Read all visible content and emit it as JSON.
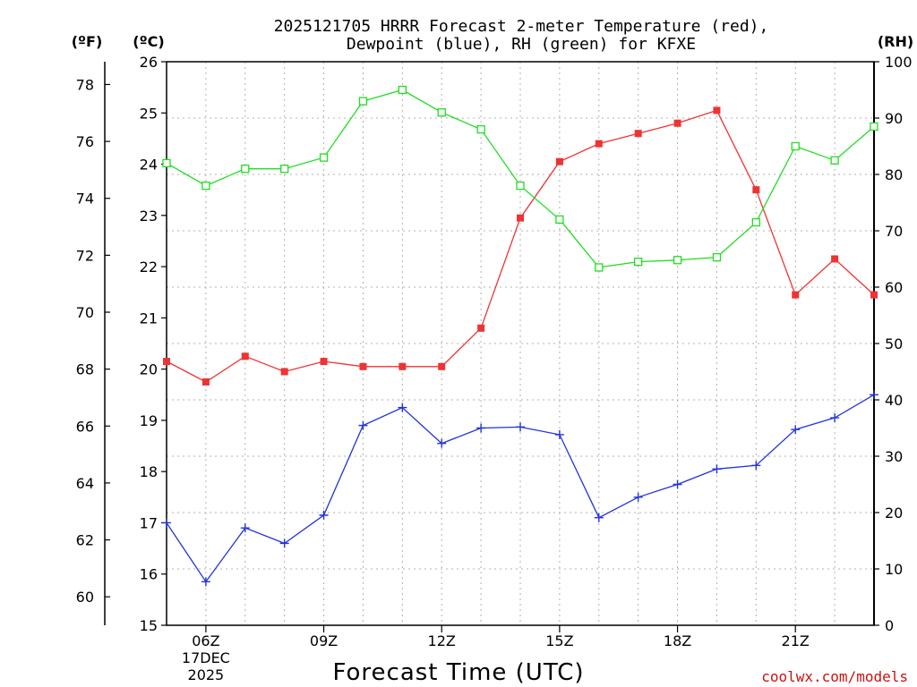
{
  "chart_data": {
    "type": "line",
    "title_line1": "2025121705 HRRR Forecast 2-meter Temperature (red),",
    "title_line2": "Dewpoint (blue), RH (green) for KFXE",
    "xlabel": "Forecast Time (UTC)",
    "credit": "coolwx.com/models",
    "unit_f": "(ºF)",
    "unit_c": "(ºC)",
    "unit_rh": "(RH)",
    "x_hours": [
      5,
      6,
      7,
      8,
      9,
      10,
      11,
      12,
      13,
      14,
      15,
      16,
      17,
      18,
      19,
      20,
      21,
      22,
      23
    ],
    "xlim": [
      5,
      23
    ],
    "x_ticks": [
      {
        "hour": 6,
        "label": "06Z",
        "sub1": "17DEC",
        "sub2": "2025"
      },
      {
        "hour": 9,
        "label": "09Z"
      },
      {
        "hour": 12,
        "label": "12Z"
      },
      {
        "hour": 15,
        "label": "15Z"
      },
      {
        "hour": 18,
        "label": "18Z"
      },
      {
        "hour": 21,
        "label": "21Z"
      }
    ],
    "celsius_axis": {
      "ylim": [
        15,
        26
      ],
      "ticks": [
        "15",
        "16",
        "17",
        "18",
        "19",
        "20",
        "21",
        "22",
        "23",
        "24",
        "25",
        "26"
      ]
    },
    "fahrenheit_axis": {
      "ticks": [
        "60",
        "62",
        "64",
        "66",
        "68",
        "70",
        "72",
        "74",
        "76",
        "78"
      ]
    },
    "rh_axis": {
      "ylim": [
        0,
        100
      ],
      "ticks": [
        "0",
        "10",
        "20",
        "30",
        "40",
        "50",
        "60",
        "70",
        "80",
        "90",
        "100"
      ]
    },
    "series": [
      {
        "name": "Temperature",
        "color": "#ee3333",
        "axis": "celsius",
        "marker": "filled-square",
        "values": [
          20.15,
          19.75,
          20.25,
          19.95,
          20.15,
          20.05,
          20.05,
          20.05,
          20.8,
          22.95,
          24.05,
          24.4,
          24.6,
          24.8,
          25.05,
          23.5,
          21.45,
          22.15,
          21.45
        ]
      },
      {
        "name": "Dewpoint",
        "color": "#2233dd",
        "axis": "celsius",
        "marker": "plus",
        "values": [
          17.0,
          15.85,
          16.9,
          16.6,
          17.15,
          18.9,
          19.25,
          18.55,
          18.85,
          18.87,
          18.72,
          17.1,
          17.5,
          17.75,
          18.05,
          18.12,
          18.82,
          19.05,
          19.5
        ]
      },
      {
        "name": "RH",
        "color": "#22dd22",
        "axis": "rh",
        "marker": "open-square",
        "values": [
          82,
          78,
          81,
          81,
          83,
          93,
          95,
          91,
          88,
          78,
          72,
          63.5,
          64.5,
          64.8,
          65.3,
          71.5,
          85,
          82.5,
          88.5
        ]
      }
    ]
  }
}
